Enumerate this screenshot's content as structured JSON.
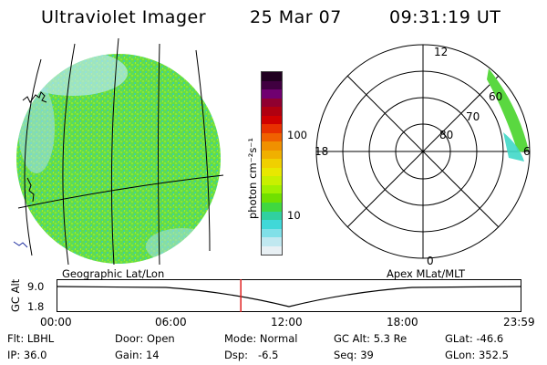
{
  "header": {
    "title": "Ultraviolet Imager",
    "date": "25 Mar 07",
    "time": "09:31:19 UT"
  },
  "colorbar": {
    "unit_label": "photon cm⁻²s⁻¹",
    "ticks": [
      "100",
      "10"
    ],
    "colors_top_to_bottom": [
      "#200020",
      "#400040",
      "#700070",
      "#900030",
      "#b00010",
      "#d00000",
      "#e83000",
      "#f06000",
      "#f09000",
      "#f0b000",
      "#f0d000",
      "#e8e800",
      "#c8f000",
      "#a0f000",
      "#70e000",
      "#40d840",
      "#30d0a0",
      "#40d8d8",
      "#80e0e8",
      "#c0e8f0",
      "#e8f0f4"
    ]
  },
  "polar_plot": {
    "mlt_labels": [
      "12",
      "18",
      "6",
      "0"
    ],
    "mlat_labels": [
      "60",
      "70",
      "80"
    ]
  },
  "panels": {
    "left_caption": "Geographic Lat/Lon",
    "right_caption": "Apex MLat/MLT"
  },
  "timeline": {
    "y_axis_label": "GC Alt",
    "y_ticks": [
      "9.0",
      "1.8"
    ],
    "x_ticks": [
      "00:00",
      "06:00",
      "12:00",
      "18:00",
      "23:59"
    ],
    "current_time_fraction": 0.396
  },
  "info": {
    "flt": "Flt: LBHL",
    "ip": "IP: 36.0",
    "door": "Door: Open",
    "gain": "Gain: 14",
    "mode": "Mode: Normal",
    "dsp": "Dsp:   -6.5",
    "gc_alt": "GC Alt: 5.3 Re",
    "seq": "Seq: 39",
    "glat": "GLat: -46.6",
    "glon": "GLon: 352.5"
  },
  "colors": {
    "aurora_green": "#60e040",
    "aurora_cyan": "#40d8c0",
    "marker_red": "#e02020"
  }
}
